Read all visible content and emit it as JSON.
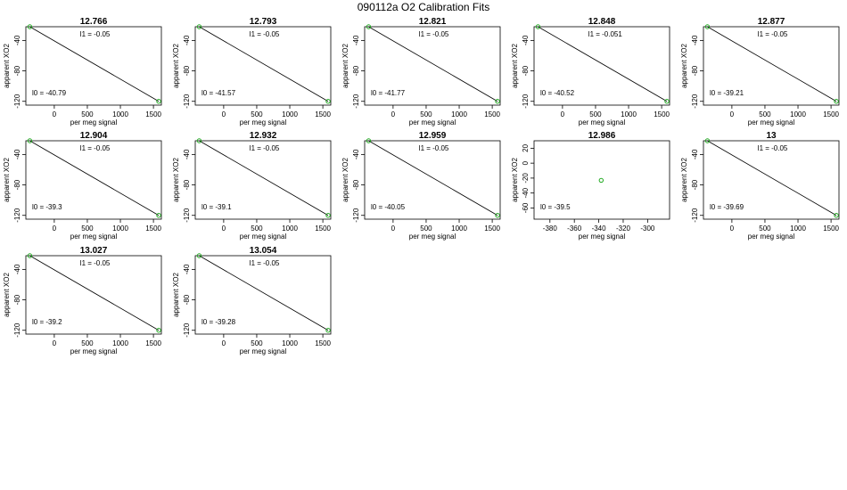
{
  "page": {
    "title": "090112a   O2 Calibration Fits"
  },
  "chart_data": [
    {
      "type": "scatter",
      "title": "12.766",
      "xlabel": "per meg signal",
      "ylabel": "apparent XO2",
      "xlim": [
        -430,
        1620
      ],
      "ylim": [
        -125,
        -22
      ],
      "xticks": [
        0,
        500,
        1000,
        1500
      ],
      "yticks": [
        -40,
        -80,
        -120
      ],
      "points": [
        {
          "x": -370,
          "y": -22
        },
        {
          "x": 1580,
          "y": -120
        }
      ],
      "fit_line": {
        "x": [
          -370,
          1580
        ],
        "y": [
          -22,
          -120
        ]
      },
      "annotations": {
        "l1": "l1 =  -0.05",
        "l0": "l0 =  -40.79"
      }
    },
    {
      "type": "scatter",
      "title": "12.793",
      "xlabel": "per meg signal",
      "ylabel": "apparent XO2",
      "xlim": [
        -430,
        1620
      ],
      "ylim": [
        -125,
        -22
      ],
      "xticks": [
        0,
        500,
        1000,
        1500
      ],
      "yticks": [
        -40,
        -80,
        -120
      ],
      "points": [
        {
          "x": -370,
          "y": -22
        },
        {
          "x": 1580,
          "y": -120
        }
      ],
      "fit_line": {
        "x": [
          -370,
          1580
        ],
        "y": [
          -22,
          -120
        ]
      },
      "annotations": {
        "l1": "l1 =  -0.05",
        "l0": "l0 =  -41.57"
      }
    },
    {
      "type": "scatter",
      "title": "12.821",
      "xlabel": "per meg signal",
      "ylabel": "apparent XO2",
      "xlim": [
        -430,
        1620
      ],
      "ylim": [
        -125,
        -22
      ],
      "xticks": [
        0,
        500,
        1000,
        1500
      ],
      "yticks": [
        -40,
        -80,
        -120
      ],
      "points": [
        {
          "x": -370,
          "y": -22
        },
        {
          "x": 1580,
          "y": -120
        }
      ],
      "fit_line": {
        "x": [
          -370,
          1580
        ],
        "y": [
          -22,
          -120
        ]
      },
      "annotations": {
        "l1": "l1 =  -0.05",
        "l0": "l0 =  -41.77"
      }
    },
    {
      "type": "scatter",
      "title": "12.848",
      "xlabel": "per meg signal",
      "ylabel": "apparent XO2",
      "xlim": [
        -430,
        1620
      ],
      "ylim": [
        -125,
        -22
      ],
      "xticks": [
        0,
        500,
        1000,
        1500
      ],
      "yticks": [
        -40,
        -80,
        -120
      ],
      "points": [
        {
          "x": -370,
          "y": -22
        },
        {
          "x": 1580,
          "y": -120
        }
      ],
      "fit_line": {
        "x": [
          -370,
          1580
        ],
        "y": [
          -22,
          -120
        ]
      },
      "annotations": {
        "l1": "l1 =  -0.051",
        "l0": "l0 =  -40.52"
      }
    },
    {
      "type": "scatter",
      "title": "12.877",
      "xlabel": "per meg signal",
      "ylabel": "apparent XO2",
      "xlim": [
        -430,
        1620
      ],
      "ylim": [
        -125,
        -22
      ],
      "xticks": [
        0,
        500,
        1000,
        1500
      ],
      "yticks": [
        -40,
        -80,
        -120
      ],
      "points": [
        {
          "x": -370,
          "y": -22
        },
        {
          "x": 1580,
          "y": -120
        }
      ],
      "fit_line": {
        "x": [
          -370,
          1580
        ],
        "y": [
          -22,
          -120
        ]
      },
      "annotations": {
        "l1": "l1 =  -0.05",
        "l0": "l0 =  -39.21"
      }
    },
    {
      "type": "scatter",
      "title": "12.904",
      "xlabel": "per meg signal",
      "ylabel": "apparent XO2",
      "xlim": [
        -430,
        1620
      ],
      "ylim": [
        -125,
        -22
      ],
      "xticks": [
        0,
        500,
        1000,
        1500
      ],
      "yticks": [
        -40,
        -80,
        -120
      ],
      "points": [
        {
          "x": -370,
          "y": -22
        },
        {
          "x": 1580,
          "y": -120
        }
      ],
      "fit_line": {
        "x": [
          -370,
          1580
        ],
        "y": [
          -22,
          -120
        ]
      },
      "annotations": {
        "l1": "l1 =  -0.05",
        "l0": "l0 =  -39.3"
      }
    },
    {
      "type": "scatter",
      "title": "12.932",
      "xlabel": "per meg signal",
      "ylabel": "apparent XO2",
      "xlim": [
        -430,
        1620
      ],
      "ylim": [
        -125,
        -22
      ],
      "xticks": [
        0,
        500,
        1000,
        1500
      ],
      "yticks": [
        -40,
        -80,
        -120
      ],
      "points": [
        {
          "x": -370,
          "y": -22
        },
        {
          "x": 1580,
          "y": -120
        }
      ],
      "fit_line": {
        "x": [
          -370,
          1580
        ],
        "y": [
          -22,
          -120
        ]
      },
      "annotations": {
        "l1": "l1 =  -0.05",
        "l0": "l0 =  -39.1"
      }
    },
    {
      "type": "scatter",
      "title": "12.959",
      "xlabel": "per meg signal",
      "ylabel": "apparent XO2",
      "xlim": [
        -430,
        1620
      ],
      "ylim": [
        -125,
        -22
      ],
      "xticks": [
        0,
        500,
        1000,
        1500
      ],
      "yticks": [
        -40,
        -80,
        -120
      ],
      "points": [
        {
          "x": -370,
          "y": -22
        },
        {
          "x": 1580,
          "y": -120
        }
      ],
      "fit_line": {
        "x": [
          -370,
          1580
        ],
        "y": [
          -22,
          -120
        ]
      },
      "annotations": {
        "l1": "l1 =  -0.05",
        "l0": "l0 =  -40.05"
      }
    },
    {
      "type": "scatter",
      "title": "12.986",
      "xlabel": "per meg signal",
      "ylabel": "apparent XO2",
      "xlim": [
        -393,
        -282
      ],
      "ylim": [
        -75,
        30
      ],
      "xticks": [
        -380,
        -360,
        -340,
        -320,
        -300
      ],
      "yticks": [
        20,
        0,
        -20,
        -40,
        -60
      ],
      "points": [
        {
          "x": -338,
          "y": -23
        }
      ],
      "fit_line": null,
      "annotations": {
        "l1": "",
        "l0": "l0 =  -39.5"
      }
    },
    {
      "type": "scatter",
      "title": "13",
      "xlabel": "per meg signal",
      "ylabel": "apparent XO2",
      "xlim": [
        -430,
        1620
      ],
      "ylim": [
        -125,
        -22
      ],
      "xticks": [
        0,
        500,
        1000,
        1500
      ],
      "yticks": [
        -40,
        -80,
        -120
      ],
      "points": [
        {
          "x": -370,
          "y": -22
        },
        {
          "x": 1580,
          "y": -120
        }
      ],
      "fit_line": {
        "x": [
          -370,
          1580
        ],
        "y": [
          -22,
          -120
        ]
      },
      "annotations": {
        "l1": "l1 =  -0.05",
        "l0": "l0 =  -39.69"
      }
    },
    {
      "type": "scatter",
      "title": "13.027",
      "xlabel": "per meg signal",
      "ylabel": "apparent XO2",
      "xlim": [
        -430,
        1620
      ],
      "ylim": [
        -125,
        -22
      ],
      "xticks": [
        0,
        500,
        1000,
        1500
      ],
      "yticks": [
        -40,
        -80,
        -120
      ],
      "points": [
        {
          "x": -370,
          "y": -22
        },
        {
          "x": 1580,
          "y": -120
        }
      ],
      "fit_line": {
        "x": [
          -370,
          1580
        ],
        "y": [
          -22,
          -120
        ]
      },
      "annotations": {
        "l1": "l1 =  -0.05",
        "l0": "l0 =  -39.2"
      }
    },
    {
      "type": "scatter",
      "title": "13.054",
      "xlabel": "per meg signal",
      "ylabel": "apparent XO2",
      "xlim": [
        -430,
        1620
      ],
      "ylim": [
        -125,
        -22
      ],
      "xticks": [
        0,
        500,
        1000,
        1500
      ],
      "yticks": [
        -40,
        -80,
        -120
      ],
      "points": [
        {
          "x": -370,
          "y": -22
        },
        {
          "x": 1580,
          "y": -120
        }
      ],
      "fit_line": {
        "x": [
          -370,
          1580
        ],
        "y": [
          -22,
          -120
        ]
      },
      "annotations": {
        "l1": "l1 =  -0.05",
        "l0": "l0 =  -39.28"
      }
    }
  ],
  "colors": {
    "point": "#22aa22",
    "line": "#000000",
    "axis": "#000000"
  }
}
